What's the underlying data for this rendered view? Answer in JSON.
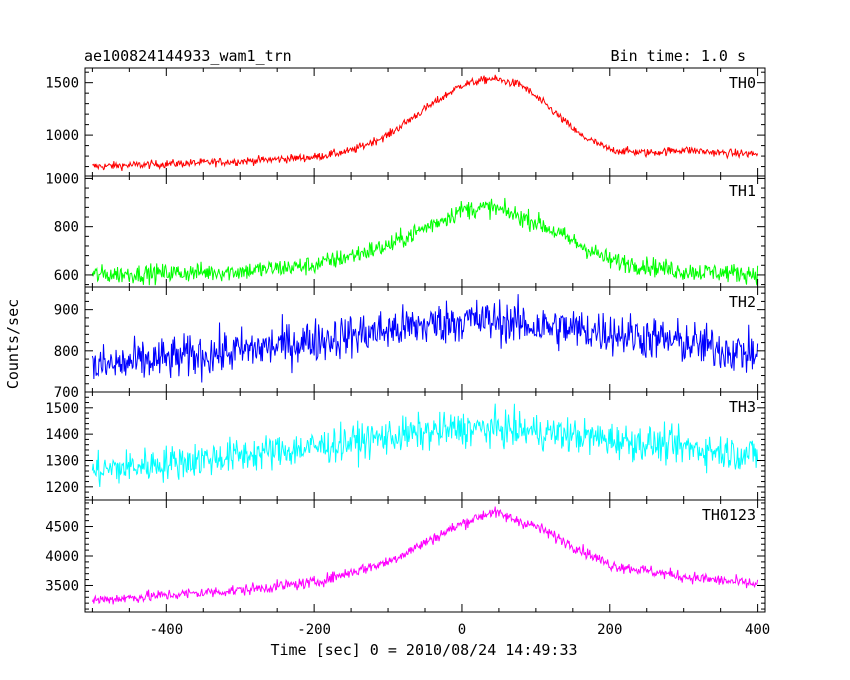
{
  "chart_data": {
    "type": "line",
    "title": "ae100824144933_wam1_trn",
    "bin_time_label": "Bin time: 1.0 s",
    "xlabel": "Time [sec] 0 = 2010/08/24 14:49:33",
    "ylabel": "Counts/sec",
    "xlim": [
      -510,
      410
    ],
    "x_ticks": [
      -400,
      -200,
      0,
      200,
      400
    ],
    "x_range": [
      -500,
      400
    ],
    "bin_seconds": 1.0,
    "grid": false,
    "legend": "none",
    "panels": [
      {
        "name": "TH0",
        "color": "#ff0000",
        "ylim": [
          610,
          1640
        ],
        "yticks": [
          1000,
          1500
        ],
        "profile": {
          "x": [
            -500,
            -300,
            -200,
            -150,
            -100,
            -50,
            0,
            40,
            80,
            120,
            160,
            200,
            250,
            300,
            350,
            400
          ],
          "y": [
            700,
            750,
            790,
            850,
            1000,
            1250,
            1480,
            1540,
            1480,
            1250,
            1000,
            860,
            830,
            860,
            830,
            820
          ]
        },
        "noise": 28
      },
      {
        "name": "TH1",
        "color": "#00ff00",
        "ylim": [
          550,
          1010
        ],
        "yticks": [
          600,
          800,
          1000
        ],
        "profile": {
          "x": [
            -500,
            -300,
            -200,
            -100,
            0,
            40,
            100,
            200,
            300,
            400
          ],
          "y": [
            600,
            615,
            640,
            720,
            870,
            880,
            820,
            660,
            615,
            605
          ]
        },
        "noise": 28
      },
      {
        "name": "TH2",
        "color": "#0000ff",
        "ylim": [
          700,
          955
        ],
        "yticks": [
          700,
          800,
          900
        ],
        "profile": {
          "x": [
            -500,
            -300,
            -200,
            -100,
            0,
            50,
            100,
            200,
            300,
            400
          ],
          "y": [
            760,
            800,
            825,
            850,
            875,
            872,
            860,
            845,
            820,
            790
          ]
        },
        "noise": 38
      },
      {
        "name": "TH3",
        "color": "#00ffff",
        "ylim": [
          1150,
          1560
        ],
        "yticks": [
          1200,
          1300,
          1400,
          1500
        ],
        "profile": {
          "x": [
            -500,
            -300,
            -200,
            -100,
            0,
            50,
            100,
            200,
            300,
            400
          ],
          "y": [
            1260,
            1320,
            1350,
            1390,
            1420,
            1420,
            1410,
            1380,
            1350,
            1320
          ]
        },
        "noise": 48
      },
      {
        "name": "TH0123",
        "color": "#ff00ff",
        "ylim": [
          3050,
          4950
        ],
        "yticks": [
          3500,
          4000,
          4500
        ],
        "profile": {
          "x": [
            -500,
            -300,
            -200,
            -100,
            0,
            40,
            100,
            200,
            300,
            400
          ],
          "y": [
            3250,
            3420,
            3550,
            3900,
            4550,
            4750,
            4500,
            3850,
            3650,
            3520
          ]
        },
        "noise": 70
      }
    ]
  }
}
